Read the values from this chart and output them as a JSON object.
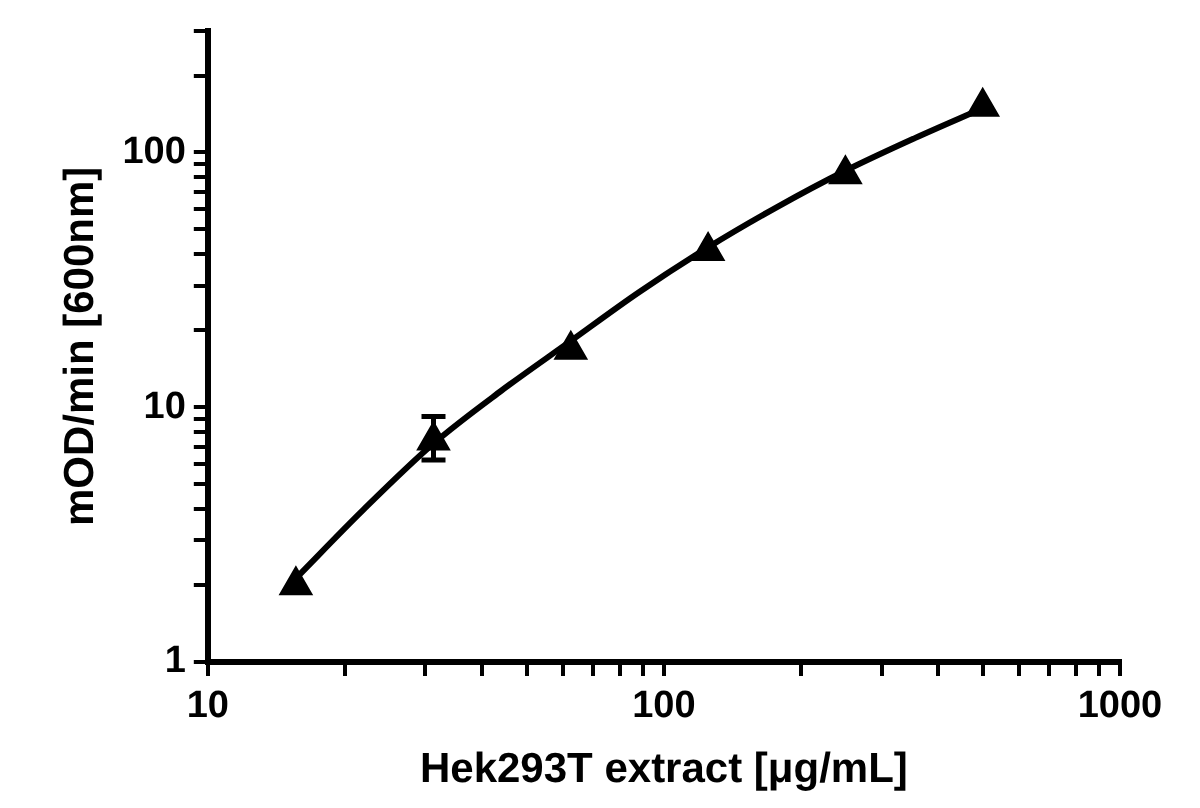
{
  "chart_data": {
    "type": "scatter",
    "xlabel": "Hek293T extract [μg/mL]",
    "ylabel": "mOD/min [600nm]",
    "log": "xy",
    "grid": false,
    "legend": false,
    "marker": "triangle",
    "xlim": [
      10,
      1000
    ],
    "ylim": [
      1,
      300
    ],
    "xticks": [
      10,
      {
        "value": 20,
        "label": null
      },
      {
        "value": 30,
        "label": null
      },
      {
        "value": 40,
        "label": null
      },
      {
        "value": 50,
        "label": null
      },
      {
        "value": 60,
        "label": null
      },
      {
        "value": 70,
        "label": null
      },
      {
        "value": 80,
        "label": null
      },
      {
        "value": 90,
        "label": null
      },
      100,
      {
        "value": 200,
        "label": null
      },
      {
        "value": 300,
        "label": null
      },
      {
        "value": 400,
        "label": null
      },
      {
        "value": 500,
        "label": null
      },
      {
        "value": 600,
        "label": null
      },
      {
        "value": 700,
        "label": null
      },
      {
        "value": 800,
        "label": null
      },
      {
        "value": 900,
        "label": null
      },
      1000
    ],
    "yticks": [
      1,
      {
        "value": 2,
        "label": null
      },
      {
        "value": 3,
        "label": null
      },
      {
        "value": 4,
        "label": null
      },
      {
        "value": 5,
        "label": null
      },
      {
        "value": 6,
        "label": null
      },
      {
        "value": 7,
        "label": null
      },
      {
        "value": 8,
        "label": null
      },
      {
        "value": 9,
        "label": null
      },
      10,
      {
        "value": 20,
        "label": null
      },
      {
        "value": 30,
        "label": null
      },
      {
        "value": 40,
        "label": null
      },
      {
        "value": 50,
        "label": null
      },
      {
        "value": 60,
        "label": null
      },
      {
        "value": 70,
        "label": null
      },
      {
        "value": 80,
        "label": null
      },
      {
        "value": 90,
        "label": null
      },
      100,
      {
        "value": 200,
        "label": null
      },
      {
        "value": 300,
        "label": null
      }
    ],
    "series": [
      {
        "type": "line",
        "marker": "none",
        "color": "#000000",
        "x": [
          15.6,
          22,
          31.25,
          44,
          62.5,
          88,
          125,
          177,
          250,
          354,
          500
        ],
        "values": [
          2.13,
          3.98,
          7.2,
          11.6,
          18.2,
          28.2,
          42.4,
          61,
          84.7,
          113.5,
          149
        ]
      },
      {
        "color": "#000000",
        "x": [
          15.6,
          31.25,
          62.5,
          125,
          250,
          500
        ],
        "values": [
          2.0,
          7.4,
          16.8,
          41,
          82,
          151
        ],
        "errors": [
          null,
          [
            6.2,
            9.2
          ],
          null,
          null,
          null,
          null
        ]
      }
    ]
  }
}
